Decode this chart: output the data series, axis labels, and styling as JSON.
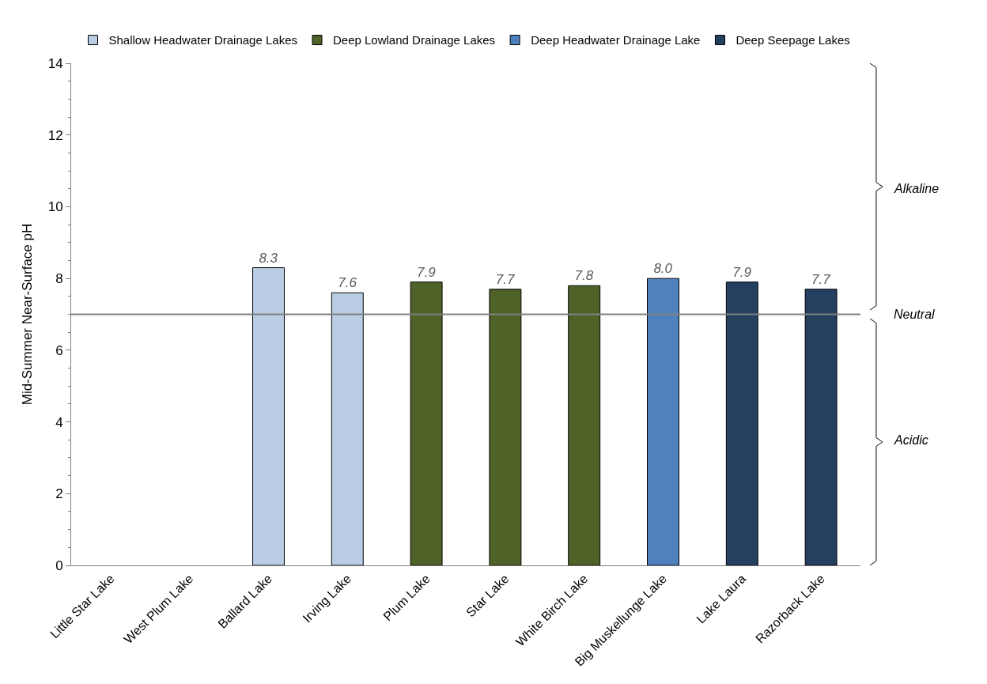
{
  "chart_data": {
    "type": "bar",
    "ylabel": "Mid-Summer Near-Surface pH",
    "categories": [
      "Little Star Lake",
      "West Plum Lake",
      "Ballard Lake",
      "Irving Lake",
      "Plum Lake",
      "Star Lake",
      "White Birch Lake",
      "Big Muskellunge Lake",
      "Lake Laura",
      "Razorback Lake"
    ],
    "series": [
      {
        "name": "Shallow Headwater Drainage Lakes",
        "color": "#b9cde5",
        "values": [
          null,
          null,
          8.3,
          7.6,
          null,
          null,
          null,
          null,
          null,
          null
        ],
        "value_labels": [
          null,
          null,
          "8.3",
          "7.6",
          null,
          null,
          null,
          null,
          null,
          null
        ]
      },
      {
        "name": "Deep Lowland Drainage Lakes",
        "color": "#4f6228",
        "values": [
          null,
          null,
          null,
          null,
          7.9,
          7.7,
          7.8,
          null,
          null,
          null
        ],
        "value_labels": [
          null,
          null,
          null,
          null,
          "7.9",
          "7.7",
          "7.8",
          null,
          null,
          null
        ]
      },
      {
        "name": "Deep Headwater Drainage Lake",
        "color": "#4f81bd",
        "values": [
          null,
          null,
          null,
          null,
          null,
          null,
          null,
          8.0,
          null,
          null
        ],
        "value_labels": [
          null,
          null,
          null,
          null,
          null,
          null,
          null,
          "8.0",
          null,
          null
        ]
      },
      {
        "name": "Deep Seepage Lakes",
        "color": "#243f60",
        "values": [
          null,
          null,
          null,
          null,
          null,
          null,
          null,
          null,
          7.9,
          7.7
        ],
        "value_labels": [
          null,
          null,
          null,
          null,
          null,
          null,
          null,
          null,
          "7.9",
          "7.7"
        ]
      }
    ],
    "ylim": [
      0,
      14
    ],
    "yticks": [
      0,
      2,
      4,
      6,
      8,
      10,
      12,
      14
    ],
    "ref_lines": [
      {
        "axis": "y",
        "value": 7,
        "color": "#808080",
        "line_style": "solid"
      }
    ],
    "annotations": [
      "Alkaline",
      "Neutral",
      "Acidic"
    ],
    "legend": "top"
  }
}
